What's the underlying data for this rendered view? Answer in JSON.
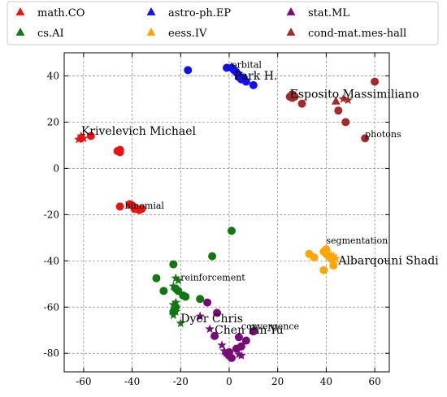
{
  "chart_data": {
    "type": "scatter",
    "title": "",
    "xlabel": "",
    "ylabel": "",
    "xlim": [
      -68,
      66
    ],
    "ylim": [
      -88,
      50
    ],
    "xticks": [
      -60,
      -40,
      -20,
      0,
      20,
      40,
      60
    ],
    "yticks": [
      -80,
      -60,
      -40,
      -20,
      0,
      20,
      40
    ],
    "grid": true,
    "legend_position": "top",
    "series": [
      {
        "name": "math.CO",
        "color": "#ee1111",
        "points": [
          [
            -61,
            13
          ],
          [
            -57,
            14
          ],
          [
            -46,
            7.5
          ],
          [
            -45,
            8
          ],
          [
            -45,
            7
          ],
          [
            -45,
            -16.5
          ],
          [
            -41,
            -15.5
          ],
          [
            -40,
            -16
          ],
          [
            -39,
            -17.5
          ],
          [
            -38,
            -17.5
          ],
          [
            -37,
            -18
          ],
          [
            -36,
            -17.5
          ]
        ],
        "stars": [
          [
            -62,
            12.5
          ],
          [
            -61,
            14
          ],
          [
            -60,
            13
          ]
        ],
        "triangles": []
      },
      {
        "name": "cs.AI",
        "color": "#117711",
        "points": [
          [
            1,
            -27
          ],
          [
            -7,
            -38
          ],
          [
            -23,
            -41.5
          ],
          [
            -30,
            -47.5
          ],
          [
            -27,
            -53
          ],
          [
            -22,
            -52
          ],
          [
            -21,
            -53
          ],
          [
            -19,
            -55
          ],
          [
            -18,
            -55.5
          ],
          [
            -12,
            -56.5
          ],
          [
            -23,
            -62
          ],
          [
            -22,
            -60
          ]
        ],
        "stars": [
          [
            -22,
            -47.5
          ],
          [
            -21,
            -48.5
          ],
          [
            -23,
            -51
          ],
          [
            -22,
            -58
          ],
          [
            -23,
            -59
          ],
          [
            -22,
            -60.5
          ],
          [
            -22,
            -62
          ],
          [
            -23,
            -63.5
          ],
          [
            -20,
            -67
          ]
        ],
        "triangles": []
      },
      {
        "name": "astro-ph.EP",
        "color": "#1111ee",
        "points": [
          [
            -17,
            42.5
          ],
          [
            -1,
            43.5
          ],
          [
            1,
            43.5
          ],
          [
            2,
            42.5
          ],
          [
            3,
            41.5
          ],
          [
            4,
            39.5
          ],
          [
            5,
            38.5
          ],
          [
            6,
            39
          ],
          [
            7,
            37.5
          ],
          [
            10,
            36
          ]
        ],
        "stars": [
          [
            1,
            44
          ],
          [
            2,
            43
          ],
          [
            4,
            41
          ],
          [
            5,
            40
          ]
        ],
        "triangles": []
      },
      {
        "name": "eess.IV",
        "color": "#ffa500",
        "points": [
          [
            33,
            -37
          ],
          [
            35,
            -38.5
          ],
          [
            39,
            -36
          ],
          [
            40,
            -35
          ],
          [
            40,
            -37
          ],
          [
            41,
            -38
          ],
          [
            42,
            -39
          ],
          [
            39,
            -44
          ],
          [
            43,
            -42
          ]
        ],
        "stars": [
          [
            40,
            -36
          ],
          [
            42,
            -37.5
          ],
          [
            43,
            -38
          ],
          [
            44,
            -39
          ],
          [
            43,
            -41
          ]
        ],
        "triangles": []
      },
      {
        "name": "stat.ML",
        "color": "#7a0a7a",
        "points": [
          [
            -9,
            -58
          ],
          [
            -5,
            -62.5
          ],
          [
            -6,
            -72.5
          ],
          [
            -1,
            -80
          ],
          [
            0,
            -79.5
          ],
          [
            0,
            -81
          ],
          [
            1,
            -82
          ],
          [
            3,
            -78
          ],
          [
            4,
            -73
          ],
          [
            5,
            -77
          ],
          [
            7,
            -74.5
          ],
          [
            10,
            -70.5
          ]
        ],
        "stars": [
          [
            -12,
            -64
          ],
          [
            -3,
            -76.5
          ],
          [
            -2,
            -79
          ],
          [
            4,
            -80.5
          ],
          [
            5,
            -81
          ],
          [
            -8,
            -69.5
          ]
        ],
        "triangles": []
      },
      {
        "name": "cond-mat.mes-hall",
        "color": "#a52a2a",
        "points": [
          [
            25,
            31
          ],
          [
            26,
            32
          ],
          [
            26,
            30.5
          ],
          [
            27,
            31
          ],
          [
            30,
            28
          ],
          [
            45,
            25
          ],
          [
            48,
            20
          ],
          [
            56,
            13
          ],
          [
            60,
            37.5
          ]
        ],
        "stars": [
          [
            47,
            30
          ],
          [
            49,
            29.5
          ]
        ],
        "triangles": [
          [
            44,
            29
          ]
        ]
      }
    ],
    "annotations": [
      {
        "text": "Krivelevich Michael",
        "x": -61,
        "y": 14.5,
        "size": "big"
      },
      {
        "text": "binomial",
        "x": -43,
        "y": -17.5,
        "size": "small"
      },
      {
        "text": "orbital",
        "x": 1,
        "y": 43.5,
        "size": "small"
      },
      {
        "text": "Park H.",
        "x": 2,
        "y": 38.5,
        "size": "big"
      },
      {
        "text": "Esposito Massimiliano",
        "x": 25,
        "y": 30.5,
        "size": "big"
      },
      {
        "text": "photons",
        "x": 56,
        "y": 13.5,
        "size": "small"
      },
      {
        "text": "segmentation",
        "x": 40,
        "y": -32.5,
        "size": "small"
      },
      {
        "text": "Albarqouni Shadi",
        "x": 45,
        "y": -41.5,
        "size": "big"
      },
      {
        "text": "reinforcement",
        "x": -20,
        "y": -48.5,
        "size": "small"
      },
      {
        "text": "Dyer Chris",
        "x": -20,
        "y": -66.5,
        "size": "big"
      },
      {
        "text": "Chen Pin-Yu",
        "x": -6,
        "y": -71.5,
        "size": "big"
      },
      {
        "text": "convergence",
        "x": 5,
        "y": -69.5,
        "size": "small"
      }
    ]
  }
}
